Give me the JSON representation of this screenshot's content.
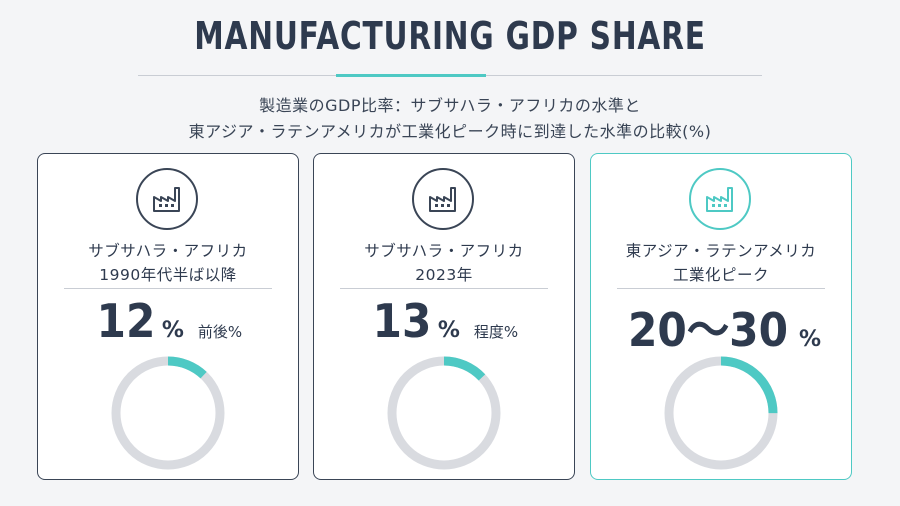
{
  "header": {
    "title": "MANUFACTURING GDP SHARE",
    "subtitle_line1": "製造業のGDP比率：サブサハラ・アフリカの水準と",
    "subtitle_line2": "東アジア・ラテンアメリカが工業化ピーク時に到達した水準の比較(%)"
  },
  "colors": {
    "accent": "#4ec9c4",
    "track": "#d9dbe0",
    "text": "#2e3a4e"
  },
  "cards": [
    {
      "icon": "factory-icon",
      "label_line1": "サブサハラ・アフリカ",
      "label_line2": "1990年代半ば以降",
      "value_text": "12",
      "percent_sign": "%",
      "qualifier": "前後%",
      "highlight": false
    },
    {
      "icon": "factory-icon",
      "label_line1": "サブサハラ・アフリカ",
      "label_line2": "2023年",
      "value_text": "13",
      "percent_sign": "%",
      "qualifier": "程度%",
      "highlight": false
    },
    {
      "icon": "factory-icon",
      "label_line1": "東アジア・ラテンアメリカ",
      "label_line2": "工業化ピーク",
      "value_text": "20～30",
      "percent_sign": "%",
      "qualifier": "",
      "highlight": true
    }
  ],
  "chart_data": {
    "type": "pie",
    "categories": [
      "サブサハラ・アフリカ 1990年代半ば以降",
      "サブサハラ・アフリカ 2023年",
      "東アジア・ラテンアメリカ 工業化ピーク"
    ],
    "values": [
      12,
      13,
      25
    ],
    "ranges": [
      [
        12,
        12
      ],
      [
        13,
        13
      ],
      [
        20,
        30
      ]
    ],
    "unit": "%",
    "max": 100
  }
}
